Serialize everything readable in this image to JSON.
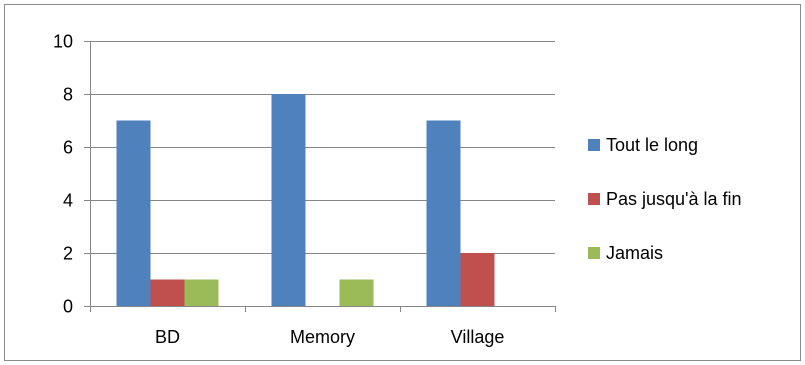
{
  "chart_data": {
    "type": "bar",
    "title": "",
    "xlabel": "",
    "ylabel": "",
    "categories": [
      "BD",
      "Memory",
      "Village"
    ],
    "series": [
      {
        "name": "Tout le long",
        "values": [
          7,
          8,
          7
        ],
        "color": "#4f81bd"
      },
      {
        "name": "Pas jusqu'à la fin",
        "values": [
          1,
          0,
          2
        ],
        "color": "#c0504d"
      },
      {
        "name": "Jamais",
        "values": [
          1,
          1,
          0
        ],
        "color": "#9bbb59"
      }
    ],
    "ylim": [
      0,
      10
    ],
    "yticks": [
      "0",
      "2",
      "4",
      "6",
      "8",
      "10"
    ],
    "grid": true,
    "legend_position": "right"
  }
}
